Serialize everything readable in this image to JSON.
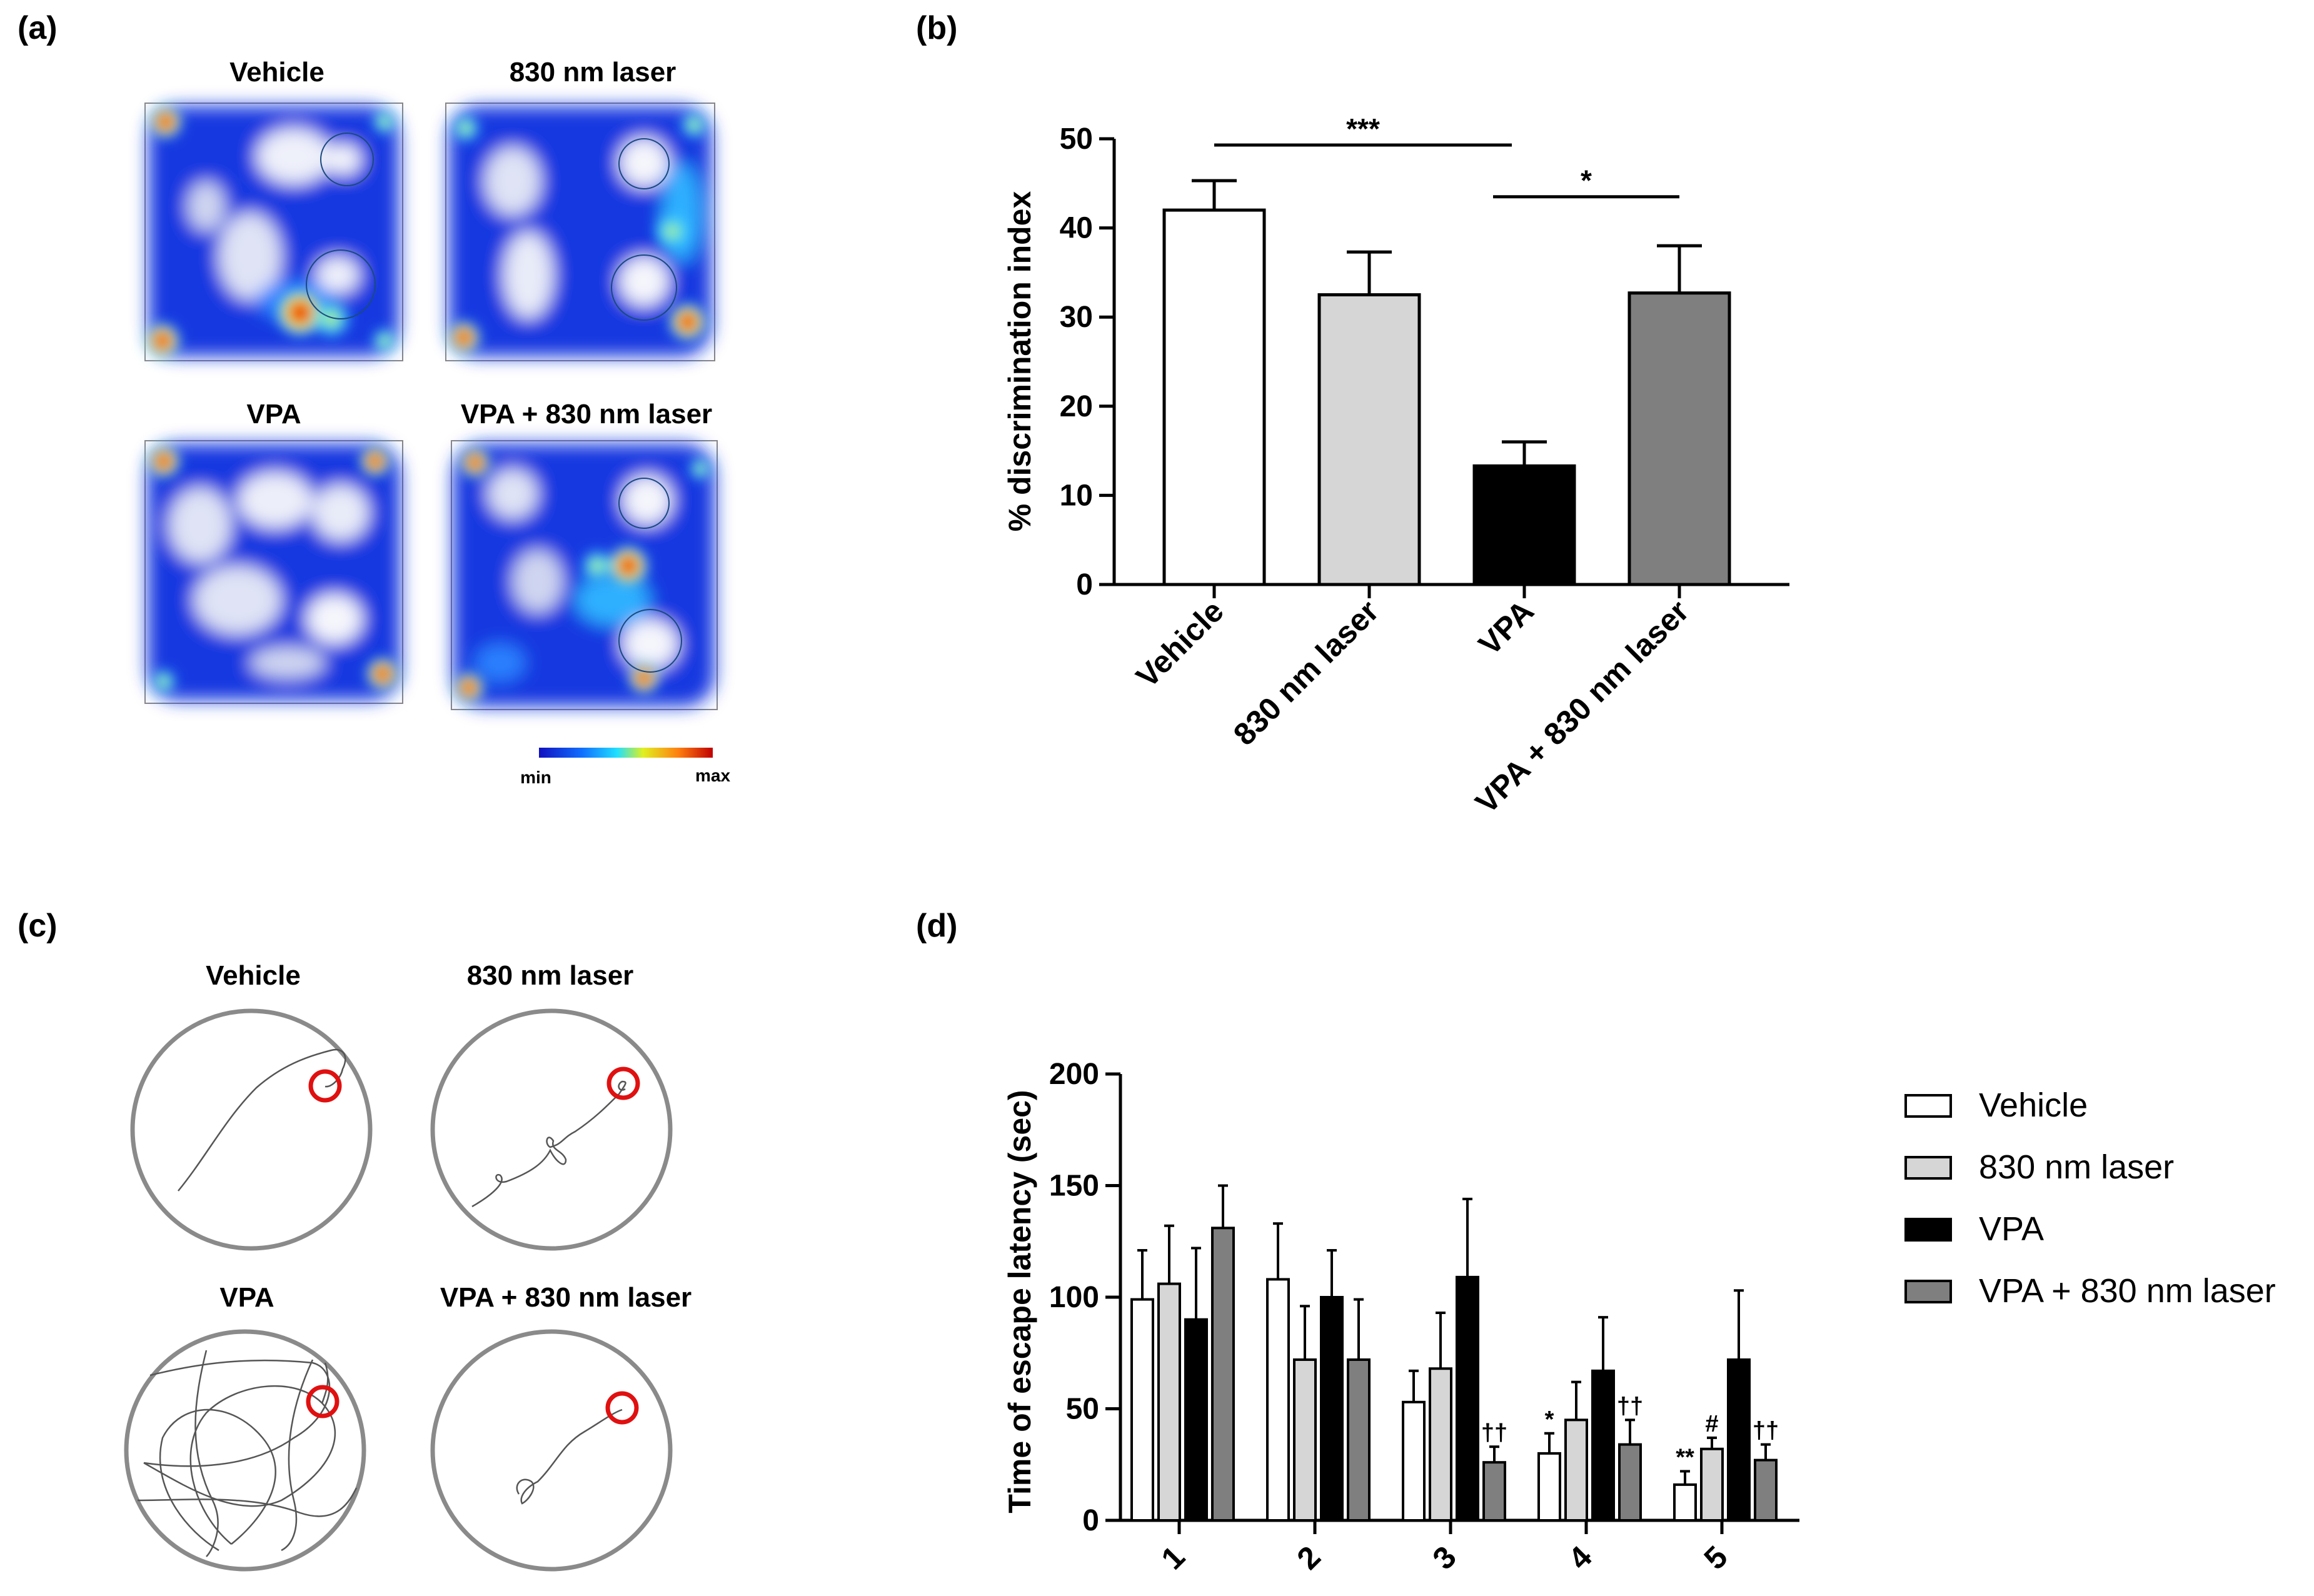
{
  "panel_labels": {
    "a": "(a)",
    "b": "(b)",
    "c": "(c)",
    "d": "(d)"
  },
  "panel_a": {
    "titles": [
      "Vehicle",
      "830 nm laser",
      "VPA",
      "VPA + 830 nm laser"
    ],
    "colorbar": {
      "min_label": "min",
      "max_label": "max"
    }
  },
  "panel_c": {
    "titles": [
      "Vehicle",
      "830 nm laser",
      "VPA",
      "VPA + 830 nm laser"
    ]
  },
  "colors": {
    "vehicle": "#ffffff",
    "laser": "#d6d6d6",
    "vpa": "#000000",
    "vpa_laser": "#7f7f7f",
    "heat_low": "#1030d8",
    "target_ring": "#e01010",
    "arena_border": "#8a8a8a"
  },
  "chart_data": [
    {
      "panel": "b",
      "type": "bar",
      "title": "",
      "ylabel": "% discrimination index",
      "xlabel": "",
      "categories": [
        "Vehicle",
        "830 nm laser",
        "VPA",
        "VPA + 830 nm laser"
      ],
      "values": [
        42,
        32.5,
        13.3,
        32.7
      ],
      "errors": [
        3.3,
        4.8,
        2.7,
        5.3
      ],
      "ylim": [
        0,
        50
      ],
      "yticks": [
        0,
        10,
        20,
        30,
        40,
        50
      ],
      "significance": [
        {
          "from": 0,
          "to": 2,
          "label": "***",
          "y": 49.3
        },
        {
          "from": 2,
          "to": 3,
          "label": "*",
          "y": 43.5
        }
      ]
    },
    {
      "panel": "d",
      "type": "bar",
      "title": "",
      "ylabel": "Time of escape latency (sec)",
      "xlabel": "",
      "categories": [
        "1",
        "2",
        "3",
        "4",
        "5"
      ],
      "ylim": [
        0,
        200
      ],
      "yticks": [
        0,
        50,
        100,
        150,
        200
      ],
      "series": [
        {
          "name": "Vehicle",
          "values": [
            99,
            108,
            53,
            30,
            16
          ],
          "errors": [
            22,
            25,
            14,
            9,
            6
          ],
          "annotations": [
            "",
            "",
            "",
            "*",
            "**"
          ]
        },
        {
          "name": "830 nm laser",
          "values": [
            106,
            72,
            68,
            45,
            32
          ],
          "errors": [
            26,
            24,
            25,
            17,
            5
          ],
          "annotations": [
            "",
            "",
            "",
            "",
            "#"
          ]
        },
        {
          "name": "VPA",
          "values": [
            90,
            100,
            109,
            67,
            72
          ],
          "errors": [
            32,
            21,
            35,
            24,
            31
          ],
          "annotations": [
            "",
            "",
            "",
            "",
            ""
          ]
        },
        {
          "name": "VPA + 830 nm laser",
          "values": [
            131,
            72,
            26,
            34,
            27
          ],
          "errors": [
            19,
            27,
            7,
            11,
            7
          ],
          "annotations": [
            "",
            "",
            "††",
            "††",
            "††"
          ]
        }
      ],
      "legend": [
        "Vehicle",
        "830 nm laser",
        "VPA",
        "VPA + 830 nm laser"
      ],
      "legend_position": "right"
    }
  ]
}
